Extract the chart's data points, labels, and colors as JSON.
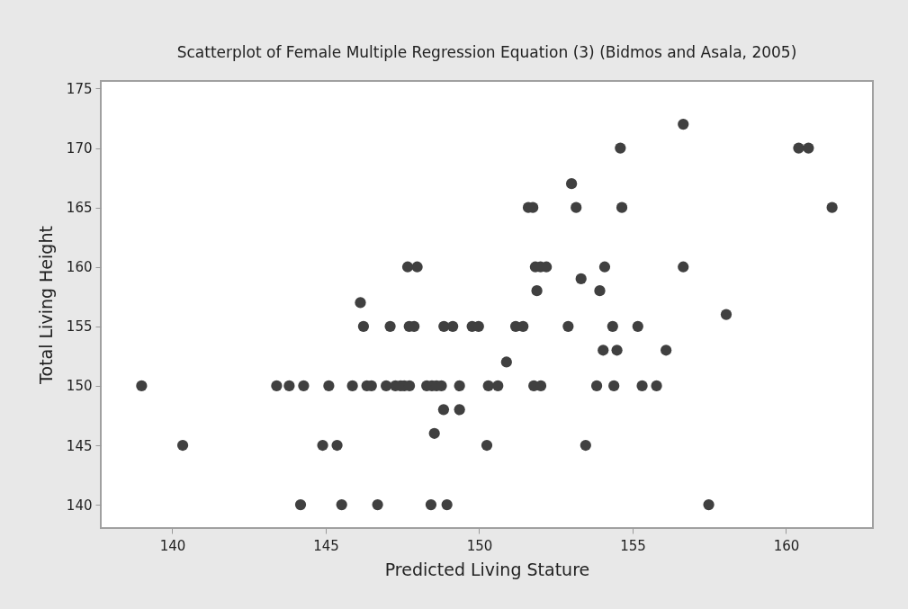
{
  "chart_data": {
    "type": "scatter",
    "title": "Scatterplot of Female Multiple Regression Equation (3) (Bidmos and Asala, 2005)",
    "xlabel": "Predicted Living Stature",
    "ylabel": "Total Living Height",
    "x": [
      146.13,
      147.67,
      147.98,
      146.23,
      147.1,
      147.72,
      147.88,
      148.85,
      149.14,
      149.77,
      149.98,
      151.19,
      151.43,
      152.9,
      154.35,
      155.17,
      156.65,
      154.6,
      160.41,
      160.73,
      153.01,
      151.6,
      151.75,
      153.16,
      154.65,
      161.5,
      151.83,
      152.0,
      152.19,
      154.09,
      156.65,
      153.32,
      151.88,
      153.93,
      158.05,
      154.04,
      154.49,
      156.09,
      150.89,
      150.61,
      151.78,
      152.01,
      153.83,
      154.39,
      155.31,
      155.78,
      153.47,
      157.48,
      139.0,
      143.4,
      143.81,
      144.28,
      145.1,
      145.87,
      146.34,
      146.49,
      146.97,
      147.27,
      147.44,
      147.56,
      147.73,
      148.29,
      148.46,
      148.61,
      148.77,
      149.36,
      150.3,
      148.84,
      149.36,
      148.54,
      140.34,
      144.9,
      145.37,
      150.25,
      144.18,
      145.52,
      146.69,
      148.43,
      148.95
    ],
    "values": [
      157,
      160,
      160,
      155,
      155,
      155,
      155,
      155,
      155,
      155,
      155,
      155,
      155,
      155,
      155,
      155,
      172,
      170,
      170,
      170,
      167,
      165,
      165,
      165,
      165,
      165,
      160,
      160,
      160,
      160,
      160,
      159,
      158,
      158,
      156,
      153,
      153,
      153,
      152,
      150,
      150,
      150,
      150,
      150,
      150,
      150,
      145,
      140,
      150,
      150,
      150,
      150,
      150,
      150,
      150,
      150,
      150,
      150,
      150,
      150,
      150,
      150,
      150,
      150,
      150,
      150,
      150,
      148,
      148,
      146,
      145,
      145,
      145,
      145,
      140,
      140,
      140,
      140,
      140
    ],
    "color": "#404040",
    "marker": "circle",
    "xlim": [
      137.67,
      162.83
    ],
    "ylim": [
      138.04,
      175.64
    ],
    "xticks": [
      140,
      145,
      150,
      155,
      160
    ],
    "yticks": [
      140,
      145,
      150,
      155,
      160,
      165,
      170,
      175
    ],
    "grid": false
  }
}
